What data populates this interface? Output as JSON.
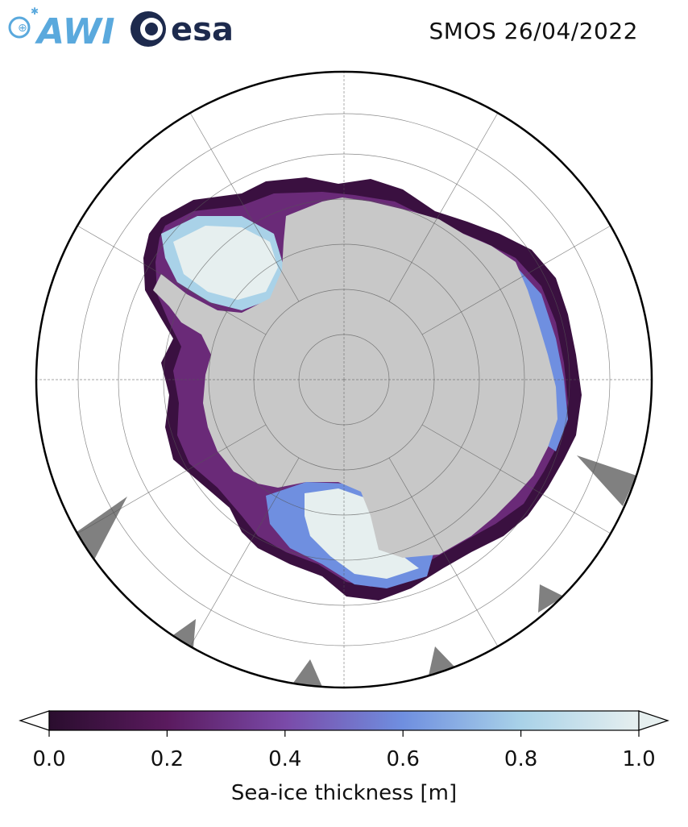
{
  "header": {
    "title": "SMOS 26/04/2022",
    "logos": [
      {
        "name": "AWI",
        "text": "AWI",
        "color": "#5aa9dd"
      },
      {
        "name": "esa",
        "text": "esa",
        "color": "#1d2a4d"
      }
    ]
  },
  "map": {
    "projection": "south-polar-stereographic",
    "graticule": {
      "latitude_rings": 6,
      "meridians": 12
    },
    "land_color": "#c8c8c8",
    "nodata_color": "#808080"
  },
  "colorbar": {
    "label": "Sea-ice thickness [m]",
    "min": 0.0,
    "max": 1.0,
    "ticks": [
      "0.0",
      "0.2",
      "0.4",
      "0.6",
      "0.8",
      "1.0"
    ],
    "colors": [
      "#2a0d2e",
      "#5a1a5e",
      "#7a4aa8",
      "#6f8fe0",
      "#a9d2e8",
      "#e6efef"
    ],
    "extend": "both"
  }
}
